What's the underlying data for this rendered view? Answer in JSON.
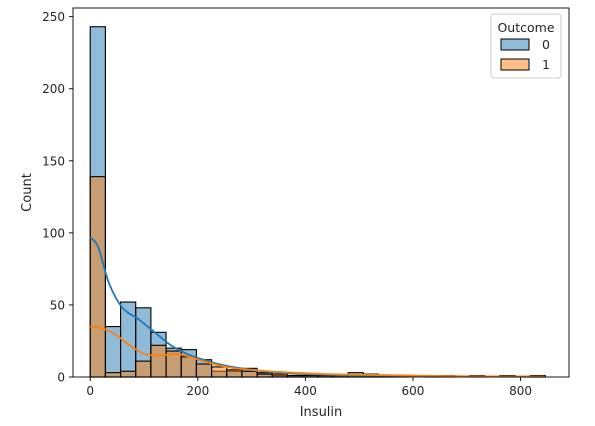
{
  "chart_data": {
    "type": "histogram",
    "xlabel": "Insulin",
    "ylabel": "Count",
    "xlim": [
      -32,
      890
    ],
    "ylim": [
      0,
      256
    ],
    "bin_width": 28.2,
    "bin_start": 0,
    "x_ticks": [
      0,
      200,
      400,
      600,
      800
    ],
    "y_ticks": [
      0,
      50,
      100,
      150,
      200,
      250
    ],
    "legend": {
      "title": "Outcome",
      "position": "top-right",
      "entries": [
        "0",
        "1"
      ]
    },
    "series": [
      {
        "name": "0",
        "color": "#1f77b4",
        "counts": [
          243,
          35,
          52,
          48,
          31,
          20,
          19,
          12,
          4,
          4,
          6,
          3,
          1,
          1,
          1,
          1,
          1,
          1,
          1,
          1,
          0,
          0,
          0,
          0,
          0,
          0,
          0,
          0,
          0,
          0
        ],
        "kde": [
          [
            0,
            97
          ],
          [
            15,
            90
          ],
          [
            35,
            65
          ],
          [
            60,
            48
          ],
          [
            90,
            40
          ],
          [
            120,
            31
          ],
          [
            150,
            22
          ],
          [
            180,
            16
          ],
          [
            210,
            12
          ],
          [
            250,
            8
          ],
          [
            300,
            5
          ],
          [
            350,
            3
          ],
          [
            400,
            2
          ],
          [
            500,
            1
          ],
          [
            600,
            0.6
          ],
          [
            700,
            0.4
          ],
          [
            845,
            0.2
          ]
        ]
      },
      {
        "name": "1",
        "color": "#ff7f0e",
        "counts": [
          139,
          3,
          4,
          11,
          22,
          18,
          14,
          9,
          7,
          5,
          4,
          2,
          2,
          1,
          1,
          1,
          1,
          3,
          2,
          1,
          1,
          0,
          1,
          1,
          0,
          1,
          0,
          1,
          0,
          1
        ],
        "kde": [
          [
            0,
            35
          ],
          [
            20,
            34
          ],
          [
            45,
            30
          ],
          [
            70,
            23
          ],
          [
            100,
            16
          ],
          [
            130,
            15
          ],
          [
            160,
            16
          ],
          [
            185,
            14
          ],
          [
            210,
            11
          ],
          [
            240,
            8
          ],
          [
            270,
            6
          ],
          [
            300,
            5
          ],
          [
            330,
            4
          ],
          [
            380,
            3
          ],
          [
            440,
            2
          ],
          [
            520,
            1.5
          ],
          [
            600,
            1
          ],
          [
            700,
            0.5
          ],
          [
            845,
            0.2
          ]
        ]
      }
    ]
  }
}
